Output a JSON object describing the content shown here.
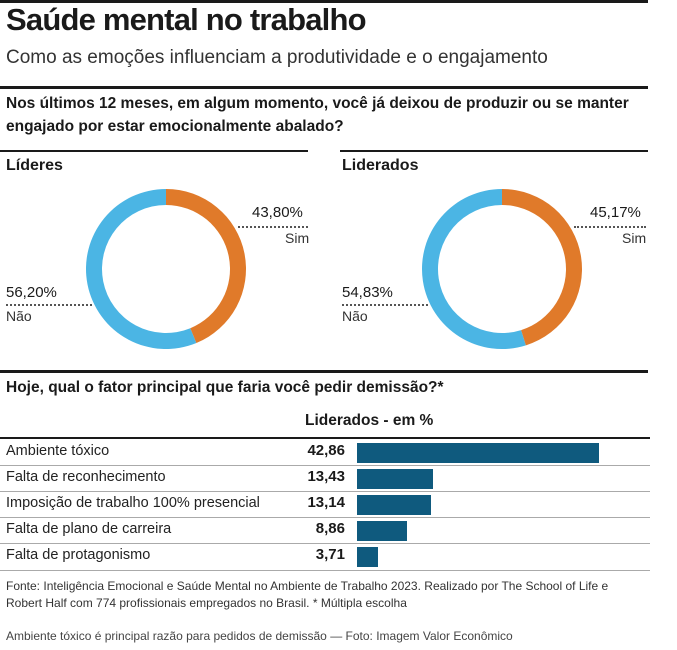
{
  "header": {
    "title": "Saúde mental no trabalho",
    "subtitle": "Como as emoções influenciam a produtividade e o engajamento"
  },
  "question1": "Nos últimos 12 meses, em algum momento, você já deixou de produzir ou se manter engajado por estar emocionalmente abalado?",
  "question2": "Hoje, qual o fator principal que faria você pedir demissão?*",
  "source": "Fonte: Inteligência Emocional e Saúde Mental no Ambiente de Trabalho 2023. Realizado por The School of Life e Robert Half com 774 profissionais empregados no Brasil. * Múltipla escolha",
  "caption": "Ambiente tóxico é principal razão para pedidos de demissão — Foto: Imagem Valor Econômico",
  "colors": {
    "sim": "#e07a2a",
    "nao": "#4bb5e4",
    "bar": "#0f5a7e"
  },
  "chart_data": [
    {
      "type": "pie",
      "title": "Líderes",
      "slices": [
        {
          "label": "Sim",
          "value": 43.8,
          "display": "43,80%"
        },
        {
          "label": "Não",
          "value": 56.2,
          "display": "56,20%"
        }
      ]
    },
    {
      "type": "pie",
      "title": "Liderados",
      "slices": [
        {
          "label": "Sim",
          "value": 45.17,
          "display": "45,17%"
        },
        {
          "label": "Não",
          "value": 54.83,
          "display": "54,83%"
        }
      ]
    },
    {
      "type": "bar",
      "title": "Liderados - em %",
      "categories": [
        "Ambiente tóxico",
        "Falta de reconhecimento",
        "Imposição de trabalho 100% presencial",
        "Falta de plano de carreira",
        "Falta de protagonismo"
      ],
      "values": [
        42.86,
        13.43,
        13.14,
        8.86,
        3.71
      ],
      "display": [
        "42,86",
        "13,43",
        "13,14",
        "8,86",
        "3,71"
      ]
    }
  ]
}
